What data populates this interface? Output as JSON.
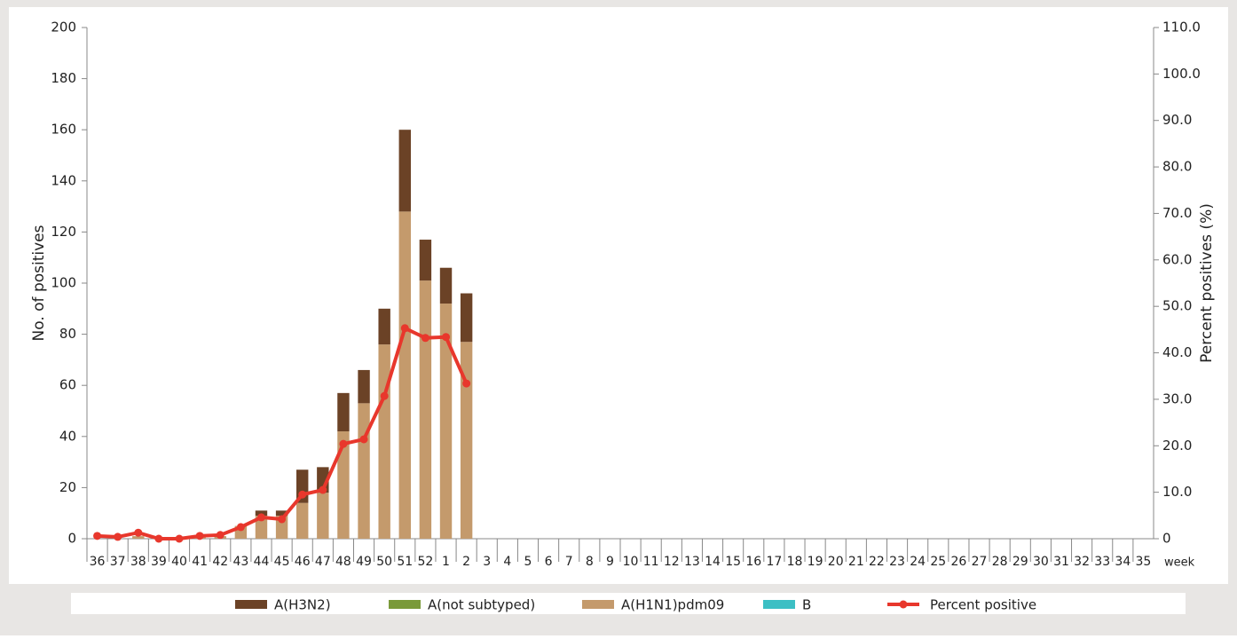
{
  "chart_data": {
    "type": "bar",
    "stacked": true,
    "y_label": "No. of positives",
    "y2_label": "Percent positives (%)",
    "x_label": "week",
    "categories": [
      "36",
      "37",
      "38",
      "39",
      "40",
      "41",
      "42",
      "43",
      "44",
      "45",
      "46",
      "47",
      "48",
      "49",
      "50",
      "51",
      "52",
      "1",
      "2",
      "3",
      "4",
      "5",
      "6",
      "7",
      "8",
      "9",
      "10",
      "11",
      "12",
      "13",
      "14",
      "15",
      "16",
      "17",
      "18",
      "19",
      "20",
      "21",
      "22",
      "23",
      "24",
      "25",
      "26",
      "27",
      "28",
      "29",
      "30",
      "31",
      "32",
      "33",
      "34",
      "35"
    ],
    "series": [
      {
        "name": "A(H3N2)",
        "color": "#6b4226",
        "values": [
          0,
          0,
          0,
          0,
          0,
          0,
          0,
          0,
          2,
          2,
          13,
          10,
          15,
          13,
          14,
          32,
          16,
          14,
          19,
          null,
          null,
          null,
          null,
          null,
          null,
          null,
          null,
          null,
          null,
          null,
          null,
          null,
          null,
          null,
          null,
          null,
          null,
          null,
          null,
          null,
          null,
          null,
          null,
          null,
          null,
          null,
          null,
          null,
          null,
          null,
          null,
          null
        ]
      },
      {
        "name": "A(not subtyped)",
        "color": "#7a9a3a",
        "values": [
          0,
          0,
          0,
          0,
          0,
          0,
          0,
          0,
          0,
          0,
          0,
          0,
          0,
          0,
          0,
          0,
          0,
          0,
          0,
          null,
          null,
          null,
          null,
          null,
          null,
          null,
          null,
          null,
          null,
          null,
          null,
          null,
          null,
          null,
          null,
          null,
          null,
          null,
          null,
          null,
          null,
          null,
          null,
          null,
          null,
          null,
          null,
          null,
          null,
          null,
          null,
          null
        ]
      },
      {
        "name": "A(H1N1)pdm09",
        "color": "#c49a6c",
        "values": [
          0,
          0,
          1,
          0,
          0,
          1,
          1,
          5,
          9,
          9,
          14,
          18,
          42,
          53,
          76,
          128,
          101,
          92,
          77,
          null,
          null,
          null,
          null,
          null,
          null,
          null,
          null,
          null,
          null,
          null,
          null,
          null,
          null,
          null,
          null,
          null,
          null,
          null,
          null,
          null,
          null,
          null,
          null,
          null,
          null,
          null,
          null,
          null,
          null,
          null,
          null,
          null
        ]
      },
      {
        "name": "B",
        "color": "#3cbfc4",
        "values": [
          0,
          0,
          0,
          0,
          0,
          0,
          0,
          0,
          0,
          0,
          0,
          0,
          0,
          0,
          0,
          0,
          0,
          0,
          0,
          null,
          null,
          null,
          null,
          null,
          null,
          null,
          null,
          null,
          null,
          null,
          null,
          null,
          null,
          null,
          null,
          null,
          null,
          null,
          null,
          null,
          null,
          null,
          null,
          null,
          null,
          null,
          null,
          null,
          null,
          null,
          null,
          null
        ]
      },
      {
        "name": "Percent positive",
        "color": "#e8372c",
        "type": "line",
        "axis": "y2",
        "values": [
          0.6,
          0.4,
          1.3,
          0,
          0,
          0.6,
          0.8,
          2.5,
          4.6,
          4.2,
          9.5,
          10.5,
          20.4,
          21.4,
          30.7,
          45.3,
          43.2,
          43.4,
          33.4,
          null,
          null,
          null,
          null,
          null,
          null,
          null,
          null,
          null,
          null,
          null,
          null,
          null,
          null,
          null,
          null,
          null,
          null,
          null,
          null,
          null,
          null,
          null,
          null,
          null,
          null,
          null,
          null,
          null,
          null,
          null,
          null,
          null
        ]
      }
    ],
    "ylim": [
      0,
      200
    ],
    "yticks": [
      0,
      20,
      40,
      60,
      80,
      100,
      120,
      140,
      160,
      180,
      200
    ],
    "y2lim": [
      0,
      110
    ],
    "y2ticks": [
      0,
      {
        "value": 10,
        "label": "10.0"
      },
      {
        "value": 20,
        "label": "20.0"
      },
      {
        "value": 30,
        "label": "30.0"
      },
      {
        "value": 40,
        "label": "40.0"
      },
      {
        "value": 50,
        "label": "50.0"
      },
      {
        "value": 60,
        "label": "60.0"
      },
      {
        "value": 70,
        "label": "70.0"
      },
      {
        "value": 80,
        "label": "80.0"
      },
      {
        "value": 90,
        "label": "90.0"
      },
      {
        "value": 100,
        "label": "100.0"
      },
      {
        "value": 110,
        "label": "110.0"
      }
    ]
  }
}
